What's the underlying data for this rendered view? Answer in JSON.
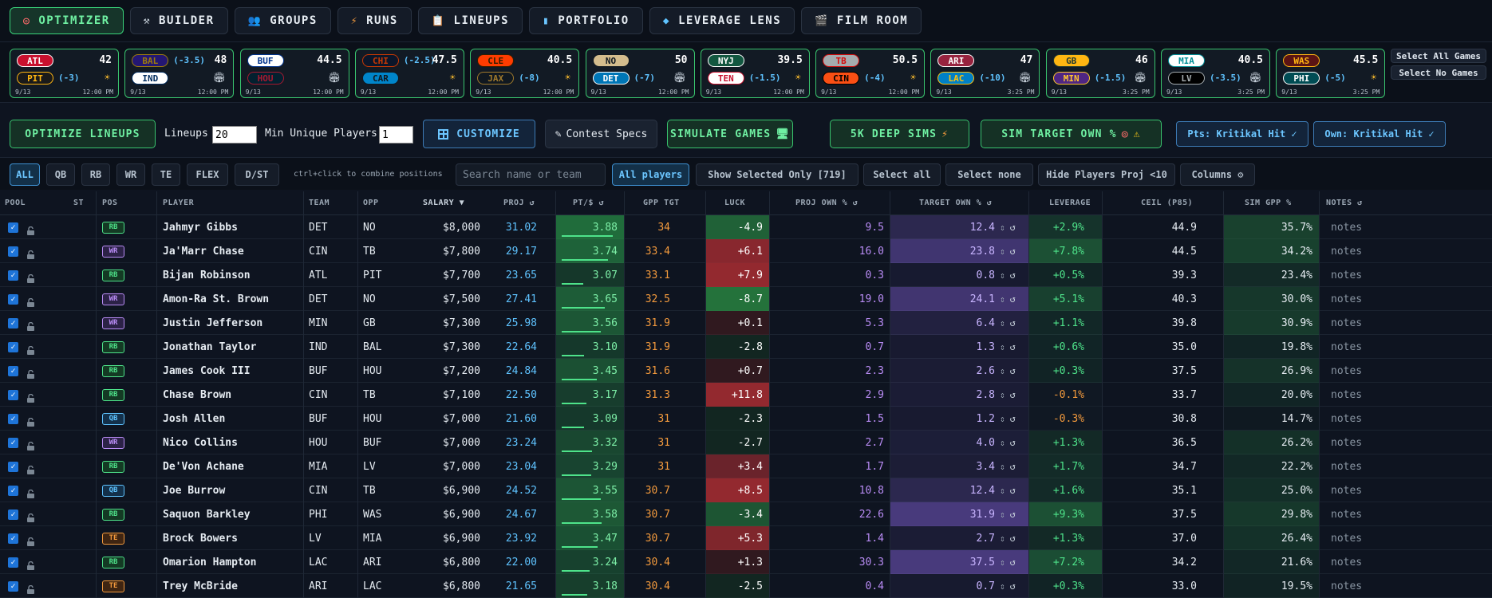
{
  "nav": [
    {
      "label": "OPTIMIZER",
      "icon": "target-icon",
      "active": true
    },
    {
      "label": "BUILDER",
      "icon": "tools-icon"
    },
    {
      "label": "GROUPS",
      "icon": "people-icon"
    },
    {
      "label": "RUNS",
      "icon": "lightning-icon"
    },
    {
      "label": "LINEUPS",
      "icon": "clipboard-icon"
    },
    {
      "label": "PORTFOLIO",
      "icon": "bar-chart-icon"
    },
    {
      "label": "LEVERAGE LENS",
      "icon": "diamond-icon"
    },
    {
      "label": "FILM ROOM",
      "icon": "clapper-icon"
    }
  ],
  "games": [
    {
      "away": "ATL",
      "home": "PIT",
      "spread": "(-3)",
      "spread_team": "home",
      "total": "42",
      "weather": "sun",
      "date": "9/13",
      "time": "12:00 PM"
    },
    {
      "away": "BAL",
      "home": "IND",
      "spread": "(-3.5)",
      "spread_team": "away",
      "total": "48",
      "weather": "dome",
      "date": "9/13",
      "time": "12:00 PM"
    },
    {
      "away": "BUF",
      "home": "HOU",
      "spread": "",
      "spread_team": "",
      "total": "44.5",
      "weather": "dome",
      "date": "9/13",
      "time": "12:00 PM"
    },
    {
      "away": "CHI",
      "home": "CAR",
      "spread": "(-2.5)",
      "spread_team": "away",
      "total": "47.5",
      "weather": "sun",
      "date": "9/13",
      "time": "12:00 PM"
    },
    {
      "away": "CLE",
      "home": "JAX",
      "spread": "(-8)",
      "spread_team": "home",
      "total": "40.5",
      "weather": "sun",
      "date": "9/13",
      "time": "12:00 PM"
    },
    {
      "away": "NO",
      "home": "DET",
      "spread": "(-7)",
      "spread_team": "home",
      "total": "50",
      "weather": "dome",
      "date": "9/13",
      "time": "12:00 PM"
    },
    {
      "away": "NYJ",
      "home": "TEN",
      "spread": "(-1.5)",
      "spread_team": "home",
      "total": "39.5",
      "weather": "sun",
      "date": "9/13",
      "time": "12:00 PM"
    },
    {
      "away": "TB",
      "home": "CIN",
      "spread": "(-4)",
      "spread_team": "home",
      "total": "50.5",
      "weather": "sun",
      "date": "9/13",
      "time": "12:00 PM"
    },
    {
      "away": "ARI",
      "home": "LAC",
      "spread": "(-10)",
      "spread_team": "home",
      "total": "47",
      "weather": "dome",
      "date": "9/13",
      "time": "3:25 PM"
    },
    {
      "away": "GB",
      "home": "MIN",
      "spread": "(-1.5)",
      "spread_team": "home",
      "total": "46",
      "weather": "dome",
      "date": "9/13",
      "time": "3:25 PM"
    },
    {
      "away": "MIA",
      "home": "LV",
      "spread": "(-3.5)",
      "spread_team": "home",
      "total": "40.5",
      "weather": "dome",
      "date": "9/13",
      "time": "3:25 PM"
    },
    {
      "away": "WAS",
      "home": "PHI",
      "spread": "(-5)",
      "spread_team": "home",
      "total": "45.5",
      "weather": "sun",
      "date": "9/13",
      "time": "3:25 PM"
    }
  ],
  "game_select": {
    "all": "Select All Games",
    "none": "Select No Games"
  },
  "controls": {
    "optimize": "OPTIMIZE LINEUPS",
    "lineups_label": "Lineups",
    "lineups_value": "20",
    "min_unique_label": "Min Unique Players",
    "min_unique_value": "1",
    "customize": "CUSTOMIZE",
    "contest_specs": "Contest Specs",
    "simulate": "SIMULATE GAMES",
    "deep_sims": "5K DEEP SIMS",
    "sim_target": "SIM TARGET OWN %",
    "pts_source": "Pts: Kritikal Hit ✓",
    "own_source": "Own: Kritikal Hit ✓"
  },
  "filters": {
    "positions": [
      "ALL",
      "QB",
      "RB",
      "WR",
      "TE",
      "FLEX",
      "D/ST"
    ],
    "hint": "ctrl+click to combine positions",
    "search_placeholder": "Search name or team",
    "all_players": "All players",
    "show_selected": "Show Selected Only [719]",
    "select_all": "Select all",
    "select_none": "Select none",
    "hide_players": "Hide Players Proj <10",
    "columns": "Columns ⚙"
  },
  "columns": {
    "pool": "POOL",
    "st": "ST",
    "pos": "POS",
    "player": "PLAYER",
    "team": "TEAM",
    "opp": "OPP",
    "salary": "SALARY ▼",
    "proj": "PROJ ↺",
    "ptd": "PT/$ ↺",
    "gpp": "GPP TGT",
    "luck": "LUCK",
    "proj_own": "PROJ OWN % ↺",
    "target_own": "TARGET OWN % ↺",
    "leverage": "LEVERAGE",
    "ceil": "CEIL (P85)",
    "sim_gpp": "SIM GPP %",
    "notes": "NOTES ↺"
  },
  "notes_placeholder": "notes",
  "players": [
    {
      "pos": "RB",
      "name": "Jahmyr Gibbs",
      "team": "DET",
      "opp": "NO",
      "salary": "$8,000",
      "proj": "31.02",
      "ptd": "3.88",
      "gpp": "34",
      "luck": "-4.9",
      "proj_own": "9.5",
      "target_own": "12.4",
      "leverage": "+2.9%",
      "ceil": "44.9",
      "sim_gpp": "35.7%"
    },
    {
      "pos": "WR",
      "name": "Ja'Marr Chase",
      "team": "CIN",
      "opp": "TB",
      "salary": "$7,800",
      "proj": "29.17",
      "ptd": "3.74",
      "gpp": "33.4",
      "luck": "+6.1",
      "proj_own": "16.0",
      "target_own": "23.8",
      "leverage": "+7.8%",
      "ceil": "44.5",
      "sim_gpp": "34.2%"
    },
    {
      "pos": "RB",
      "name": "Bijan Robinson",
      "team": "ATL",
      "opp": "PIT",
      "salary": "$7,700",
      "proj": "23.65",
      "ptd": "3.07",
      "gpp": "33.1",
      "luck": "+7.9",
      "proj_own": "0.3",
      "target_own": "0.8",
      "leverage": "+0.5%",
      "ceil": "39.3",
      "sim_gpp": "23.4%"
    },
    {
      "pos": "WR",
      "name": "Amon-Ra St. Brown",
      "team": "DET",
      "opp": "NO",
      "salary": "$7,500",
      "proj": "27.41",
      "ptd": "3.65",
      "gpp": "32.5",
      "luck": "-8.7",
      "proj_own": "19.0",
      "target_own": "24.1",
      "leverage": "+5.1%",
      "ceil": "40.3",
      "sim_gpp": "30.0%"
    },
    {
      "pos": "WR",
      "name": "Justin Jefferson",
      "team": "MIN",
      "opp": "GB",
      "salary": "$7,300",
      "proj": "25.98",
      "ptd": "3.56",
      "gpp": "31.9",
      "luck": "+0.1",
      "proj_own": "5.3",
      "target_own": "6.4",
      "leverage": "+1.1%",
      "ceil": "39.8",
      "sim_gpp": "30.9%"
    },
    {
      "pos": "RB",
      "name": "Jonathan Taylor",
      "team": "IND",
      "opp": "BAL",
      "salary": "$7,300",
      "proj": "22.64",
      "ptd": "3.10",
      "gpp": "31.9",
      "luck": "-2.8",
      "proj_own": "0.7",
      "target_own": "1.3",
      "leverage": "+0.6%",
      "ceil": "35.0",
      "sim_gpp": "19.8%"
    },
    {
      "pos": "RB",
      "name": "James Cook III",
      "team": "BUF",
      "opp": "HOU",
      "salary": "$7,200",
      "proj": "24.84",
      "ptd": "3.45",
      "gpp": "31.6",
      "luck": "+0.7",
      "proj_own": "2.3",
      "target_own": "2.6",
      "leverage": "+0.3%",
      "ceil": "37.5",
      "sim_gpp": "26.9%"
    },
    {
      "pos": "RB",
      "name": "Chase Brown",
      "team": "CIN",
      "opp": "TB",
      "salary": "$7,100",
      "proj": "22.50",
      "ptd": "3.17",
      "gpp": "31.3",
      "luck": "+11.8",
      "proj_own": "2.9",
      "target_own": "2.8",
      "leverage": "-0.1%",
      "ceil": "33.7",
      "sim_gpp": "20.0%"
    },
    {
      "pos": "QB",
      "name": "Josh Allen",
      "team": "BUF",
      "opp": "HOU",
      "salary": "$7,000",
      "proj": "21.60",
      "ptd": "3.09",
      "gpp": "31",
      "luck": "-2.3",
      "proj_own": "1.5",
      "target_own": "1.2",
      "leverage": "-0.3%",
      "ceil": "30.8",
      "sim_gpp": "14.7%"
    },
    {
      "pos": "WR",
      "name": "Nico Collins",
      "team": "HOU",
      "opp": "BUF",
      "salary": "$7,000",
      "proj": "23.24",
      "ptd": "3.32",
      "gpp": "31",
      "luck": "-2.7",
      "proj_own": "2.7",
      "target_own": "4.0",
      "leverage": "+1.3%",
      "ceil": "36.5",
      "sim_gpp": "26.2%"
    },
    {
      "pos": "RB",
      "name": "De'Von Achane",
      "team": "MIA",
      "opp": "LV",
      "salary": "$7,000",
      "proj": "23.04",
      "ptd": "3.29",
      "gpp": "31",
      "luck": "+3.4",
      "proj_own": "1.7",
      "target_own": "3.4",
      "leverage": "+1.7%",
      "ceil": "34.7",
      "sim_gpp": "22.2%"
    },
    {
      "pos": "QB",
      "name": "Joe Burrow",
      "team": "CIN",
      "opp": "TB",
      "salary": "$6,900",
      "proj": "24.52",
      "ptd": "3.55",
      "gpp": "30.7",
      "luck": "+8.5",
      "proj_own": "10.8",
      "target_own": "12.4",
      "leverage": "+1.6%",
      "ceil": "35.1",
      "sim_gpp": "25.0%"
    },
    {
      "pos": "RB",
      "name": "Saquon Barkley",
      "team": "PHI",
      "opp": "WAS",
      "salary": "$6,900",
      "proj": "24.67",
      "ptd": "3.58",
      "gpp": "30.7",
      "luck": "-3.4",
      "proj_own": "22.6",
      "target_own": "31.9",
      "leverage": "+9.3%",
      "ceil": "37.5",
      "sim_gpp": "29.8%"
    },
    {
      "pos": "TE",
      "name": "Brock Bowers",
      "team": "LV",
      "opp": "MIA",
      "salary": "$6,900",
      "proj": "23.92",
      "ptd": "3.47",
      "gpp": "30.7",
      "luck": "+5.3",
      "proj_own": "1.4",
      "target_own": "2.7",
      "leverage": "+1.3%",
      "ceil": "37.0",
      "sim_gpp": "26.4%"
    },
    {
      "pos": "RB",
      "name": "Omarion Hampton",
      "team": "LAC",
      "opp": "ARI",
      "salary": "$6,800",
      "proj": "22.00",
      "ptd": "3.24",
      "gpp": "30.4",
      "luck": "+1.3",
      "proj_own": "30.3",
      "target_own": "37.5",
      "leverage": "+7.2%",
      "ceil": "34.2",
      "sim_gpp": "21.6%"
    },
    {
      "pos": "TE",
      "name": "Trey McBride",
      "team": "ARI",
      "opp": "LAC",
      "salary": "$6,800",
      "proj": "21.65",
      "ptd": "3.18",
      "gpp": "30.4",
      "luck": "-2.5",
      "proj_own": "0.4",
      "target_own": "0.7",
      "leverage": "+0.3%",
      "ceil": "33.0",
      "sim_gpp": "19.5%"
    }
  ],
  "colors": {
    "accent_green": "#39c46e",
    "accent_blue": "#3e8fcf",
    "proj_blue": "#5fc3ff",
    "gpp_orange": "#f39a3d",
    "own_purple": "#b98cf5",
    "leverage_green": "#4ee38a",
    "team_colors": {
      "ATL": [
        "#c8102e",
        "#fff"
      ],
      "PIT": [
        "#1a1a1a",
        "#ffb612"
      ],
      "BAL": [
        "#241773",
        "#9e7c0c"
      ],
      "IND": [
        "#fff",
        "#002c5f"
      ],
      "BUF": [
        "#fff",
        "#00338d"
      ],
      "HOU": [
        "#03202f",
        "#a71930"
      ],
      "CHI": [
        "#0b162a",
        "#c83803"
      ],
      "CAR": [
        "#0085ca",
        "#101820"
      ],
      "CLE": [
        "#ff3c00",
        "#311d00"
      ],
      "JAX": [
        "#101820",
        "#9f792c"
      ],
      "NO": [
        "#d3bc8d",
        "#101820"
      ],
      "DET": [
        "#0076b6",
        "#fff"
      ],
      "NYJ": [
        "#125740",
        "#fff"
      ],
      "TEN": [
        "#fff",
        "#c8102e"
      ],
      "TB": [
        "#a5acaf",
        "#d50a0a"
      ],
      "CIN": [
        "#fb4f14",
        "#000"
      ],
      "ARI": [
        "#97233f",
        "#fff"
      ],
      "LAC": [
        "#0080c6",
        "#ffc20e"
      ],
      "GB": [
        "#ffb612",
        "#203731"
      ],
      "MIN": [
        "#4f2683",
        "#ffc62f"
      ],
      "MIA": [
        "#fff",
        "#008e97"
      ],
      "LV": [
        "#000",
        "#a5acaf"
      ],
      "WAS": [
        "#5a1414",
        "#ffb612"
      ],
      "PHI": [
        "#004c54",
        "#fff"
      ]
    }
  }
}
